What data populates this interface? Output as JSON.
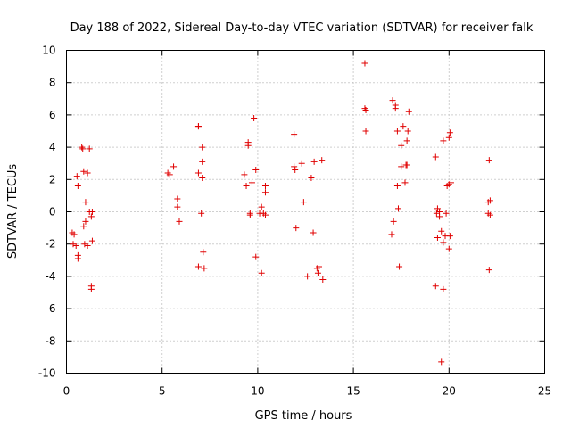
{
  "chart_data": {
    "type": "scatter",
    "title": "Day 188 of 2022, Sidereal Day-to-day VTEC variation (SDTVAR) for receiver falk",
    "xlabel": "GPS time / hours",
    "ylabel": "SDTVAR / TECUs",
    "xlim": [
      0,
      25
    ],
    "ylim": [
      -10,
      10
    ],
    "xticks": [
      0,
      5,
      10,
      15,
      20,
      25
    ],
    "yticks": [
      -10,
      -8,
      -6,
      -4,
      -2,
      0,
      2,
      4,
      6,
      8,
      10
    ],
    "grid": true,
    "marker": "+",
    "color": "#e00000",
    "x": [
      0.3,
      0.4,
      0.35,
      0.5,
      0.6,
      0.6,
      0.6,
      0.55,
      0.9,
      0.85,
      0.8,
      0.95,
      0.9,
      1.1,
      1.0,
      1.2,
      1.1,
      1.0,
      1.2,
      1.3,
      1.35,
      1.3,
      1.3,
      1.35,
      5.3,
      5.4,
      5.6,
      5.8,
      5.8,
      5.9,
      6.9,
      6.9,
      6.9,
      7.1,
      7.1,
      7.1,
      7.05,
      7.15,
      6.9,
      7.2,
      9.3,
      9.4,
      9.5,
      9.5,
      9.6,
      9.6,
      9.8,
      9.9,
      9.7,
      10.1,
      10.2,
      10.4,
      10.4,
      10.4,
      9.9,
      10.2,
      10.3,
      11.9,
      11.9,
      11.95,
      12.0,
      12.3,
      12.4,
      12.8,
      12.9,
      12.95,
      13.1,
      13.2,
      13.15,
      13.4,
      13.35,
      12.6,
      15.6,
      15.65,
      15.6,
      15.65,
      17.0,
      17.1,
      17.2,
      17.05,
      17.2,
      17.3,
      17.6,
      17.5,
      17.8,
      17.85,
      17.5,
      17.75,
      17.9,
      17.7,
      17.3,
      17.35,
      17.4,
      17.8,
      19.3,
      19.35,
      19.4,
      19.5,
      19.6,
      19.7,
      19.8,
      19.9,
      20.0,
      20.1,
      20.05,
      20.0,
      19.85,
      19.7,
      19.6,
      19.5,
      19.4,
      19.3,
      19.7,
      20.05,
      20.0,
      22.1,
      22.15,
      22.15,
      22.05,
      22.1,
      22.05
    ],
    "y": [
      -1.3,
      -1.4,
      -2.0,
      -2.1,
      -2.7,
      -2.9,
      1.6,
      2.2,
      2.5,
      3.9,
      4.0,
      -2.0,
      -0.9,
      -2.1,
      -0.6,
      3.9,
      2.4,
      0.6,
      0.0,
      -0.3,
      -1.8,
      -4.6,
      -4.8,
      0.0,
      2.4,
      2.3,
      2.8,
      0.8,
      0.3,
      -0.6,
      5.3,
      5.3,
      2.4,
      4.0,
      3.1,
      2.1,
      -0.1,
      -2.5,
      -3.4,
      -3.5,
      2.3,
      1.6,
      4.3,
      4.1,
      -0.1,
      -0.2,
      5.8,
      2.6,
      1.8,
      -0.1,
      0.3,
      1.6,
      1.2,
      -0.2,
      -2.8,
      -3.8,
      -0.1,
      4.8,
      2.8,
      2.6,
      -1.0,
      3.0,
      0.6,
      2.1,
      -1.3,
      3.1,
      -3.5,
      -3.4,
      -3.8,
      -4.2,
      3.2,
      -4.0,
      9.2,
      6.3,
      6.4,
      5.0,
      -1.4,
      -0.6,
      6.6,
      6.9,
      6.4,
      5.0,
      5.3,
      4.1,
      4.4,
      5.0,
      2.8,
      2.9,
      6.2,
      1.8,
      1.6,
      0.2,
      -3.4,
      2.9,
      3.4,
      -0.1,
      0.2,
      0.0,
      -1.2,
      -1.9,
      -1.5,
      1.6,
      1.7,
      1.8,
      -1.5,
      -2.3,
      -0.1,
      4.4,
      -9.3,
      -0.3,
      -1.6,
      -4.6,
      -4.8,
      4.9,
      4.6,
      3.2,
      0.7,
      -0.2,
      -0.1,
      -3.6,
      0.6
    ]
  }
}
